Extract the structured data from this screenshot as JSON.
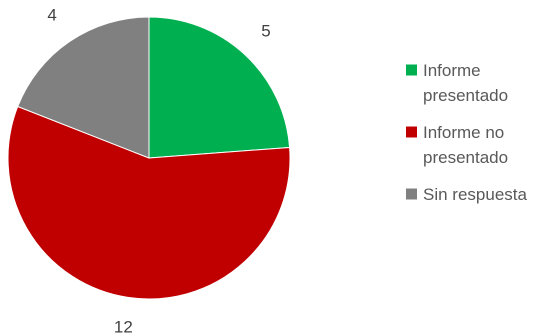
{
  "chart_data": {
    "type": "pie",
    "title": "",
    "categories": [
      "Informe presentado",
      "Informe no presentado",
      "Sin respuesta"
    ],
    "values": [
      5,
      12,
      4
    ],
    "colors": [
      "#00B050",
      "#C00000",
      "#808080"
    ],
    "start_angle_deg": 0,
    "direction": "clockwise",
    "legend_position": "right",
    "data_labels": [
      "5",
      "12",
      "4"
    ],
    "legend_lines": [
      [
        "Informe",
        "presentado"
      ],
      [
        "Informe no",
        "presentado"
      ],
      [
        "Sin respuesta"
      ]
    ]
  }
}
